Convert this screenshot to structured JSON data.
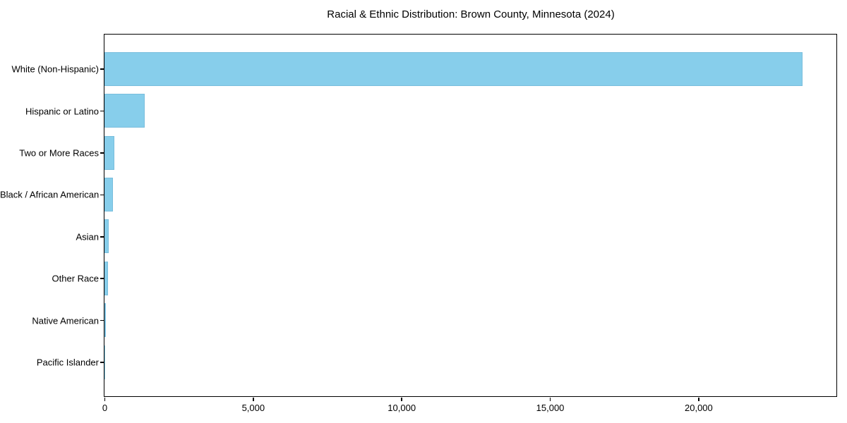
{
  "chart_data": {
    "type": "bar",
    "orientation": "horizontal",
    "title": "Racial & Ethnic Distribution: Brown County, Minnesota (2024)",
    "categories": [
      "White (Non-Hispanic)",
      "Hispanic or Latino",
      "Two or More Races",
      "Black / African American",
      "Asian",
      "Other Race",
      "Native American",
      "Pacific Islander"
    ],
    "values": [
      23500,
      1350,
      340,
      275,
      150,
      125,
      40,
      5
    ],
    "xlabel": "",
    "ylabel": "",
    "xlim": [
      0,
      24650
    ],
    "xticks": [
      0,
      5000,
      10000,
      15000,
      20000
    ],
    "xtick_labels": [
      "0",
      "5,000",
      "10,000",
      "15,000",
      "20,000"
    ],
    "bar_color": "#87CEEB",
    "axis_color": "#000000",
    "background_color": "#ffffff",
    "grid": false,
    "legend": false
  }
}
